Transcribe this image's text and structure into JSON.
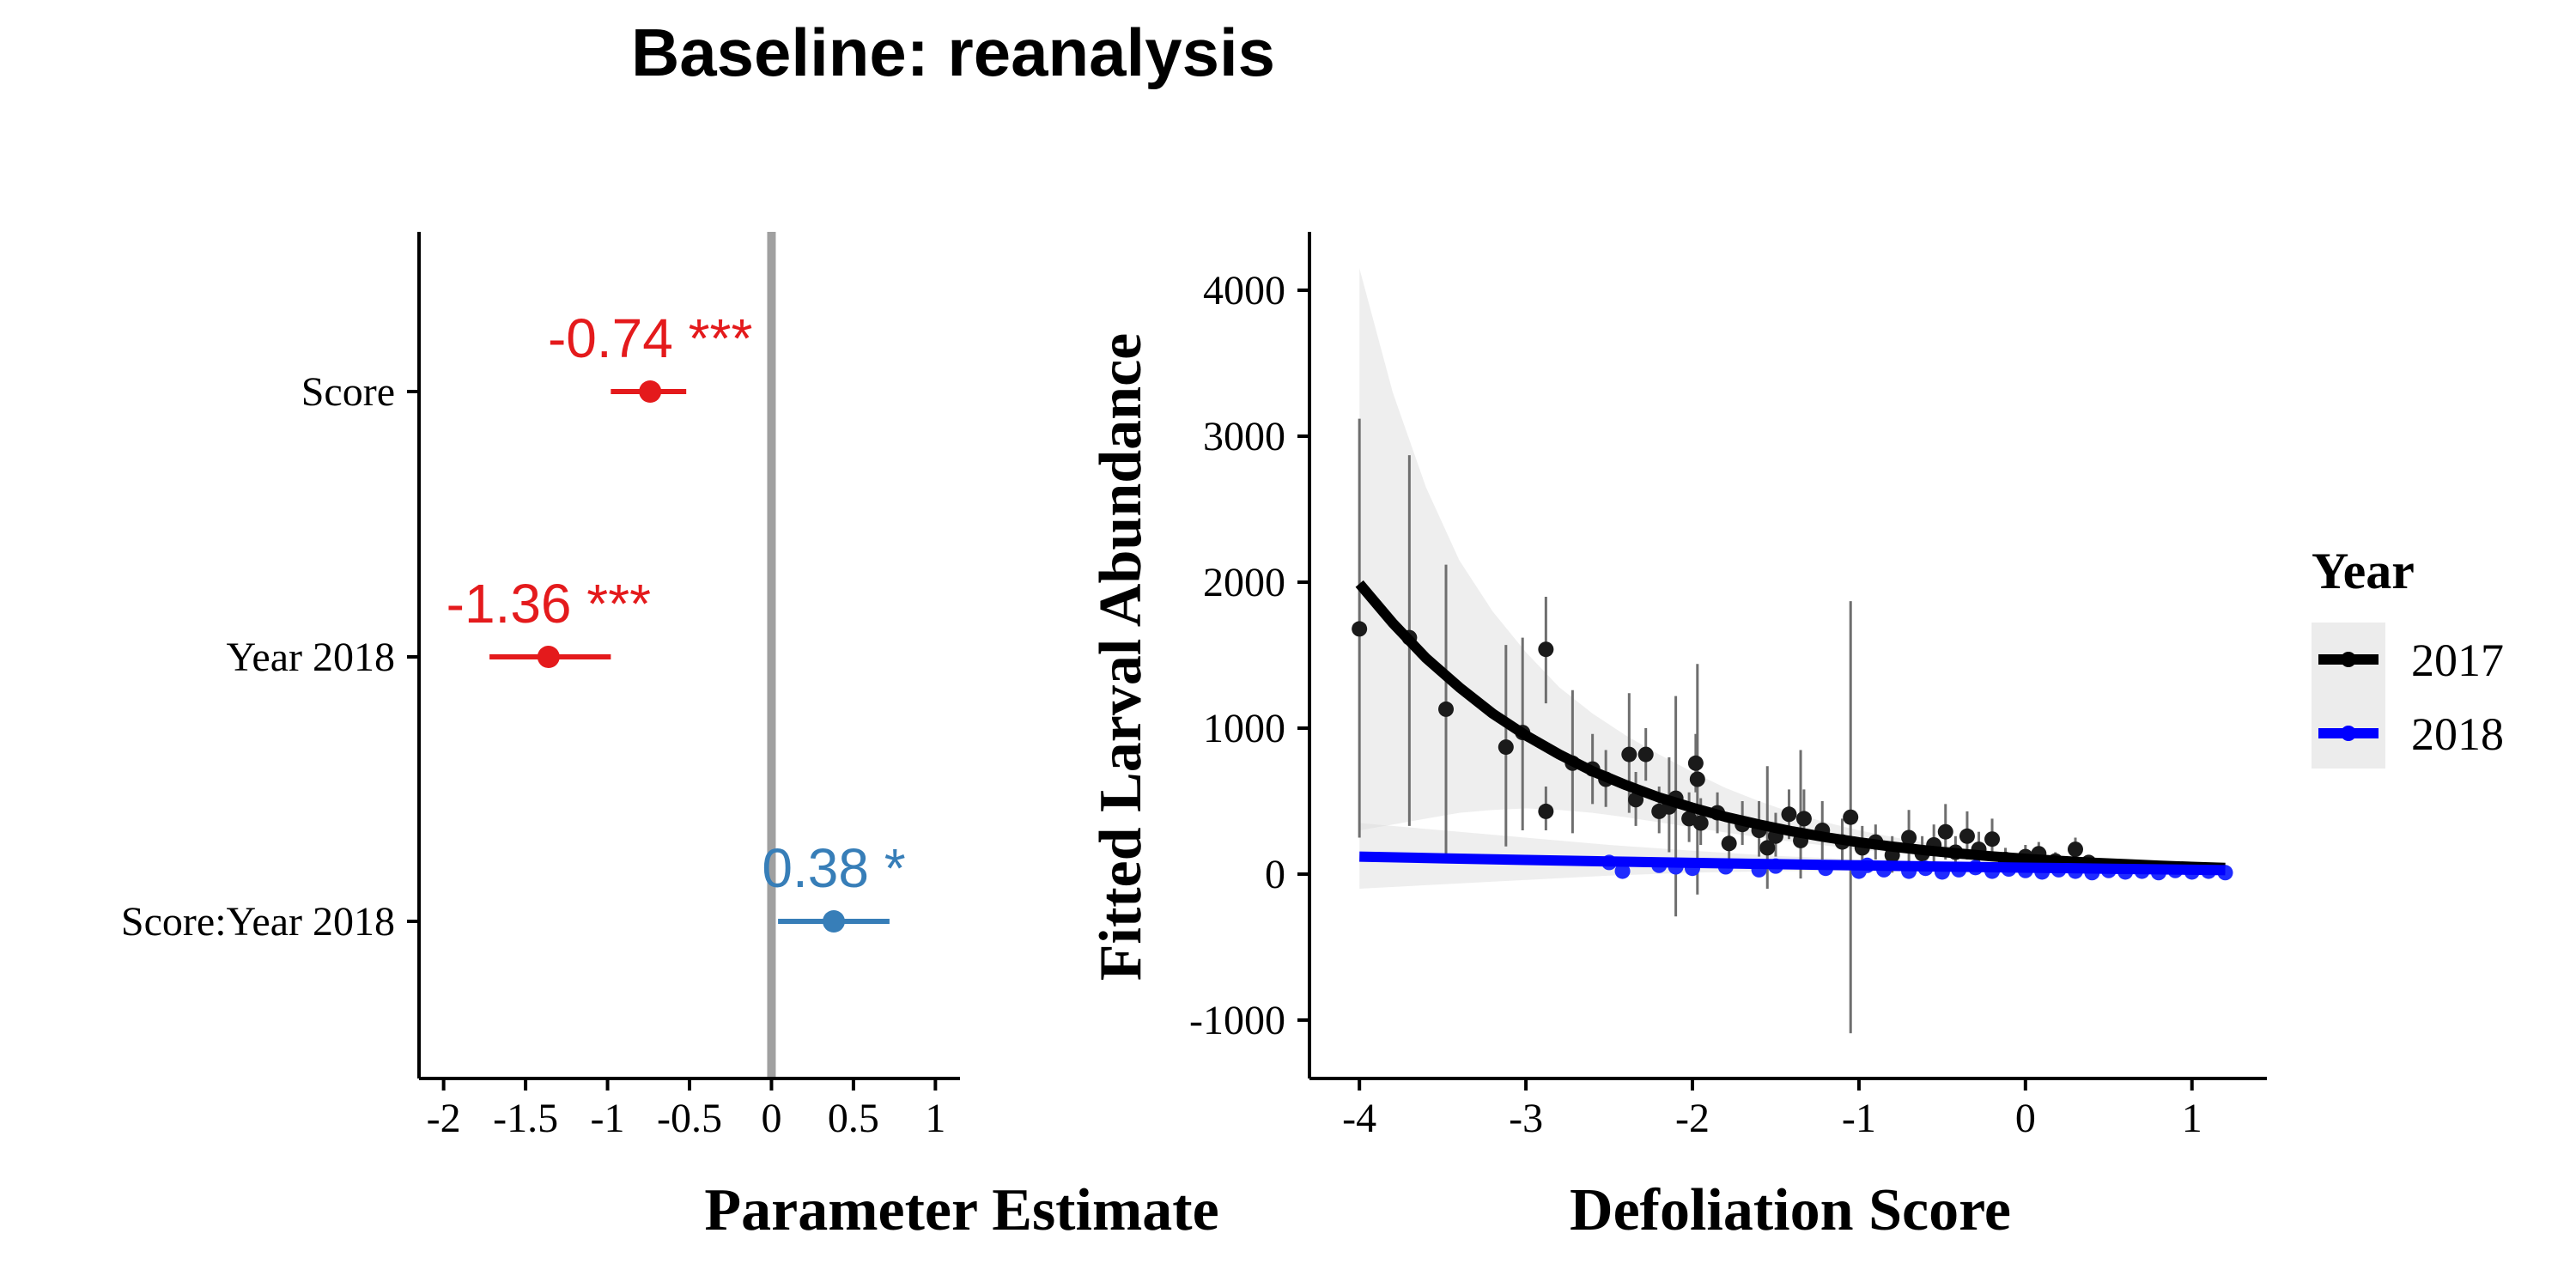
{
  "title": "Baseline: reanalysis",
  "chart_data": [
    {
      "type": "forest",
      "xlabel": "Parameter Estimate",
      "xlim": [
        -2.15,
        1.15
      ],
      "xticks": [
        -2,
        -1.5,
        -1,
        -0.5,
        0,
        0.5,
        1
      ],
      "xtick_labels": [
        "-2",
        "-1.5",
        "-1",
        "-0.5",
        "0",
        "0.5",
        "1"
      ],
      "reference_line": 0,
      "terms": [
        {
          "label": "Score",
          "estimate": -0.74,
          "ci": [
            -0.98,
            -0.52
          ],
          "annotation": "-0.74 ***",
          "color": "#e41a1c"
        },
        {
          "label": "Year 2018",
          "estimate": -1.36,
          "ci": [
            -1.72,
            -0.98
          ],
          "annotation": "-1.36 ***",
          "color": "#e41a1c"
        },
        {
          "label": "Score:Year 2018",
          "estimate": 0.38,
          "ci": [
            0.04,
            0.72
          ],
          "annotation": "0.38 *",
          "color": "#377eb8"
        }
      ]
    },
    {
      "type": "line+scatter",
      "xlabel": "Defoliation Score",
      "ylabel": "Fitted Larval Abundance",
      "xlim": [
        -4.3,
        1.45
      ],
      "ylim": [
        -1400,
        4400
      ],
      "xticks": [
        -4,
        -3,
        -2,
        -1,
        0,
        1
      ],
      "xtick_labels": [
        "-4",
        "-3",
        "-2",
        "-1",
        "0",
        "1"
      ],
      "yticks": [
        -1000,
        0,
        1000,
        2000,
        3000,
        4000
      ],
      "ytick_labels": [
        "-1000",
        "0",
        "1000",
        "2000",
        "3000",
        "4000"
      ],
      "grid": false,
      "legend": {
        "title": "Year",
        "position": "right",
        "entries": [
          {
            "name": "2017",
            "color": "#000000"
          },
          {
            "name": "2018",
            "color": "#0000ff"
          }
        ]
      },
      "series": [
        {
          "name": "2017",
          "color": "#000000",
          "fit": {
            "x": [
              -4,
              -3.8,
              -3.6,
              -3.4,
              -3.2,
              -3.0,
              -2.8,
              -2.6,
              -2.4,
              -2.2,
              -2.0,
              -1.8,
              -1.6,
              -1.4,
              -1.2,
              -1.0,
              -0.8,
              -0.6,
              -0.4,
              -0.2,
              0.0,
              0.2,
              0.4,
              0.6,
              0.8,
              1.0,
              1.2
            ],
            "y": [
              1990,
              1720,
              1480,
              1280,
              1100,
              950,
              820,
              705,
              610,
              525,
              455,
              392,
              340,
              293,
              253,
              218,
              189,
              163,
              141,
              122,
              105,
              91,
              78,
              68,
              58,
              50,
              43
            ],
            "ci_low": [
              300,
              340,
              380,
              420,
              440,
              450,
              440,
              420,
              390,
              355,
              320,
              285,
              252,
              222,
              195,
              170,
              148,
              128,
              111,
              96,
              83,
              71,
              61,
              52,
              44,
              37,
              31
            ],
            "ci_high": [
              4150,
              3300,
              2650,
              2150,
              1800,
              1520,
              1280,
              1100,
              950,
              820,
              700,
              590,
              500,
              420,
              355,
              300,
              255,
              215,
              183,
              155,
              132,
              113,
              97,
              84,
              73,
              64,
              57
            ]
          },
          "points": [
            {
              "x": -4.0,
              "y": 1680,
              "lo": 250,
              "hi": 3120
            },
            {
              "x": -3.7,
              "y": 1620,
              "lo": 330,
              "hi": 2870
            },
            {
              "x": -3.48,
              "y": 1130,
              "lo": 140,
              "hi": 2120
            },
            {
              "x": -3.12,
              "y": 870,
              "lo": 190,
              "hi": 1570
            },
            {
              "x": -3.02,
              "y": 970,
              "lo": 300,
              "hi": 1620
            },
            {
              "x": -2.88,
              "y": 1540,
              "lo": 1170,
              "hi": 1900
            },
            {
              "x": -2.88,
              "y": 430,
              "lo": 300,
              "hi": 600
            },
            {
              "x": -2.72,
              "y": 760,
              "lo": 280,
              "hi": 1260
            },
            {
              "x": -2.6,
              "y": 720,
              "lo": 480,
              "hi": 960
            },
            {
              "x": -2.52,
              "y": 650,
              "lo": 460,
              "hi": 850
            },
            {
              "x": -2.38,
              "y": 820,
              "lo": 420,
              "hi": 1240
            },
            {
              "x": -2.34,
              "y": 510,
              "lo": 330,
              "hi": 700
            },
            {
              "x": -2.28,
              "y": 820,
              "lo": 640,
              "hi": 1000
            },
            {
              "x": -2.2,
              "y": 430,
              "lo": 280,
              "hi": 600
            },
            {
              "x": -2.14,
              "y": 460,
              "lo": 150,
              "hi": 800
            },
            {
              "x": -2.1,
              "y": 520,
              "lo": -290,
              "hi": 1220
            },
            {
              "x": -2.02,
              "y": 380,
              "lo": 220,
              "hi": 560
            },
            {
              "x": -1.98,
              "y": 760,
              "lo": 560,
              "hi": 960
            },
            {
              "x": -1.97,
              "y": 650,
              "lo": -140,
              "hi": 1440
            },
            {
              "x": -1.95,
              "y": 350,
              "lo": 200,
              "hi": 520
            },
            {
              "x": -1.85,
              "y": 420,
              "lo": 280,
              "hi": 560
            },
            {
              "x": -1.78,
              "y": 210,
              "lo": 80,
              "hi": 360
            },
            {
              "x": -1.7,
              "y": 340,
              "lo": 200,
              "hi": 500
            },
            {
              "x": -1.6,
              "y": 300,
              "lo": 120,
              "hi": 500
            },
            {
              "x": -1.55,
              "y": 180,
              "lo": -100,
              "hi": 740
            },
            {
              "x": -1.5,
              "y": 260,
              "lo": 120,
              "hi": 420
            },
            {
              "x": -1.42,
              "y": 410,
              "lo": 240,
              "hi": 580
            },
            {
              "x": -1.35,
              "y": 230,
              "lo": -30,
              "hi": 850
            },
            {
              "x": -1.33,
              "y": 380,
              "lo": 200,
              "hi": 580
            },
            {
              "x": -1.22,
              "y": 300,
              "lo": 100,
              "hi": 500
            },
            {
              "x": -1.1,
              "y": 220,
              "lo": 60,
              "hi": 380
            },
            {
              "x": -1.05,
              "y": 390,
              "lo": -1090,
              "hi": 1870
            },
            {
              "x": -0.98,
              "y": 180,
              "lo": 60,
              "hi": 330
            },
            {
              "x": -0.9,
              "y": 220,
              "lo": 100,
              "hi": 340
            },
            {
              "x": -0.8,
              "y": 130,
              "lo": 10,
              "hi": 260
            },
            {
              "x": -0.7,
              "y": 250,
              "lo": 60,
              "hi": 440
            },
            {
              "x": -0.62,
              "y": 140,
              "lo": 20,
              "hi": 260
            },
            {
              "x": -0.55,
              "y": 200,
              "lo": 60,
              "hi": 340
            },
            {
              "x": -0.48,
              "y": 290,
              "lo": 100,
              "hi": 480
            },
            {
              "x": -0.42,
              "y": 150,
              "lo": 40,
              "hi": 260
            },
            {
              "x": -0.35,
              "y": 260,
              "lo": 100,
              "hi": 430
            },
            {
              "x": -0.28,
              "y": 170,
              "lo": 60,
              "hi": 290
            },
            {
              "x": -0.2,
              "y": 240,
              "lo": 100,
              "hi": 380
            },
            {
              "x": -0.12,
              "y": 100,
              "lo": 20,
              "hi": 180
            },
            {
              "x": 0.0,
              "y": 120,
              "lo": 40,
              "hi": 200
            },
            {
              "x": 0.08,
              "y": 140,
              "lo": 60,
              "hi": 220
            },
            {
              "x": 0.18,
              "y": 90,
              "lo": 30,
              "hi": 150
            },
            {
              "x": 0.3,
              "y": 170,
              "lo": 90,
              "hi": 250
            },
            {
              "x": 0.38,
              "y": 80,
              "lo": 30,
              "hi": 130
            }
          ]
        },
        {
          "name": "2018",
          "color": "#0000ff",
          "fit": {
            "x": [
              -4,
              -3.5,
              -3.0,
              -2.5,
              -2.0,
              -1.5,
              -1.0,
              -0.5,
              0.0,
              0.5,
              1.0,
              1.2
            ],
            "y": [
              120,
              108,
              97,
              87,
              77,
              68,
              60,
              52,
              44,
              37,
              30,
              27
            ],
            "ci_low": [
              -100,
              -70,
              -40,
              -10,
              10,
              20,
              25,
              25,
              20,
              15,
              8,
              5
            ],
            "ci_high": [
              350,
              300,
              250,
              200,
              160,
              125,
              100,
              82,
              70,
              60,
              52,
              50
            ]
          },
          "points": [
            {
              "x": -2.5,
              "y": 80,
              "lo": 40,
              "hi": 120
            },
            {
              "x": -2.42,
              "y": 20,
              "lo": -10,
              "hi": 50
            },
            {
              "x": -2.2,
              "y": 60,
              "lo": 30,
              "hi": 90
            },
            {
              "x": -2.1,
              "y": 50,
              "lo": 20,
              "hi": 80
            },
            {
              "x": -2.0,
              "y": 40,
              "lo": 10,
              "hi": 70
            },
            {
              "x": -1.8,
              "y": 50,
              "lo": 20,
              "hi": 80
            },
            {
              "x": -1.6,
              "y": 30,
              "lo": 0,
              "hi": 60
            },
            {
              "x": -1.5,
              "y": 55,
              "lo": 25,
              "hi": 85
            },
            {
              "x": -1.2,
              "y": 40,
              "lo": 10,
              "hi": 70
            },
            {
              "x": -1.0,
              "y": 20,
              "lo": -10,
              "hi": 50
            },
            {
              "x": -0.95,
              "y": 60,
              "lo": 30,
              "hi": 90
            },
            {
              "x": -0.85,
              "y": 30,
              "lo": 0,
              "hi": 60
            },
            {
              "x": -0.7,
              "y": 20,
              "lo": -10,
              "hi": 50
            },
            {
              "x": -0.6,
              "y": 40,
              "lo": 10,
              "hi": 70
            },
            {
              "x": -0.5,
              "y": 15,
              "lo": -20,
              "hi": 50
            },
            {
              "x": -0.4,
              "y": 30,
              "lo": 0,
              "hi": 60
            },
            {
              "x": -0.3,
              "y": 45,
              "lo": 15,
              "hi": 75
            },
            {
              "x": -0.2,
              "y": 20,
              "lo": -5,
              "hi": 45
            },
            {
              "x": -0.1,
              "y": 35,
              "lo": 5,
              "hi": 65
            },
            {
              "x": 0.0,
              "y": 25,
              "lo": 0,
              "hi": 50
            },
            {
              "x": 0.1,
              "y": 15,
              "lo": -10,
              "hi": 40
            },
            {
              "x": 0.2,
              "y": 30,
              "lo": 5,
              "hi": 55
            },
            {
              "x": 0.3,
              "y": 20,
              "lo": 0,
              "hi": 40
            },
            {
              "x": 0.4,
              "y": 10,
              "lo": -10,
              "hi": 30
            },
            {
              "x": 0.5,
              "y": 25,
              "lo": 5,
              "hi": 45
            },
            {
              "x": 0.6,
              "y": 15,
              "lo": -5,
              "hi": 35
            },
            {
              "x": 0.7,
              "y": 20,
              "lo": 0,
              "hi": 40
            },
            {
              "x": 0.8,
              "y": 10,
              "lo": -10,
              "hi": 30
            },
            {
              "x": 0.9,
              "y": 25,
              "lo": 5,
              "hi": 45
            },
            {
              "x": 1.0,
              "y": 15,
              "lo": -5,
              "hi": 35
            },
            {
              "x": 1.1,
              "y": 20,
              "lo": 0,
              "hi": 40
            },
            {
              "x": 1.2,
              "y": 10,
              "lo": -10,
              "hi": 30
            }
          ]
        }
      ]
    }
  ]
}
